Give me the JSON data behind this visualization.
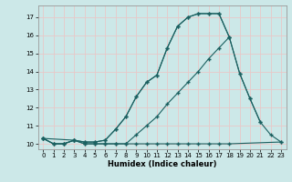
{
  "xlabel": "Humidex (Indice chaleur)",
  "bg_color": "#cce8e8",
  "grid_color": "#e8c8c8",
  "line_color": "#1a6060",
  "xlim": [
    -0.5,
    23.5
  ],
  "ylim": [
    9.7,
    17.65
  ],
  "yticks": [
    10,
    11,
    12,
    13,
    14,
    15,
    16,
    17
  ],
  "xticks": [
    0,
    1,
    2,
    3,
    4,
    5,
    6,
    7,
    8,
    9,
    10,
    11,
    12,
    13,
    14,
    15,
    16,
    17,
    18,
    19,
    20,
    21,
    22,
    23
  ],
  "line1_x": [
    0,
    1,
    2,
    3,
    4,
    5,
    6,
    7,
    8,
    9,
    10,
    11,
    12,
    13,
    14,
    15,
    16,
    17,
    18
  ],
  "line1_y": [
    10.3,
    10.0,
    10.0,
    10.2,
    10.1,
    10.1,
    10.2,
    10.8,
    11.5,
    12.6,
    13.4,
    13.8,
    15.3,
    16.5,
    17.0,
    17.2,
    17.2,
    17.2,
    15.9
  ],
  "line2_x": [
    0,
    1,
    2,
    3,
    4,
    5,
    6,
    7,
    8,
    9,
    10,
    11,
    12,
    13,
    14,
    15,
    16,
    17,
    18,
    19,
    20,
    21
  ],
  "line2_y": [
    10.3,
    10.0,
    10.0,
    10.2,
    10.1,
    10.1,
    10.2,
    10.8,
    11.5,
    12.6,
    13.4,
    13.8,
    15.3,
    16.5,
    17.0,
    17.2,
    17.2,
    17.2,
    15.9,
    13.9,
    12.5,
    11.2
  ],
  "line3_x": [
    0,
    3,
    4,
    5,
    6,
    7,
    8,
    9,
    10,
    11,
    12,
    13,
    14,
    15,
    16,
    17,
    18,
    19,
    20,
    21,
    22,
    23
  ],
  "line3_y": [
    10.3,
    10.2,
    10.0,
    10.0,
    10.0,
    10.0,
    10.0,
    10.5,
    11.0,
    11.5,
    12.2,
    12.8,
    13.4,
    14.0,
    14.7,
    15.3,
    15.9,
    13.9,
    12.5,
    11.2,
    10.5,
    10.1
  ],
  "line4_x": [
    0,
    1,
    2,
    3,
    4,
    5,
    6,
    7,
    8,
    9,
    10,
    11,
    12,
    13,
    14,
    15,
    16,
    17,
    18,
    23
  ],
  "line4_y": [
    10.3,
    10.0,
    10.0,
    10.2,
    10.0,
    10.0,
    10.0,
    10.0,
    10.0,
    10.0,
    10.0,
    10.0,
    10.0,
    10.0,
    10.0,
    10.0,
    10.0,
    10.0,
    10.0,
    10.1
  ]
}
